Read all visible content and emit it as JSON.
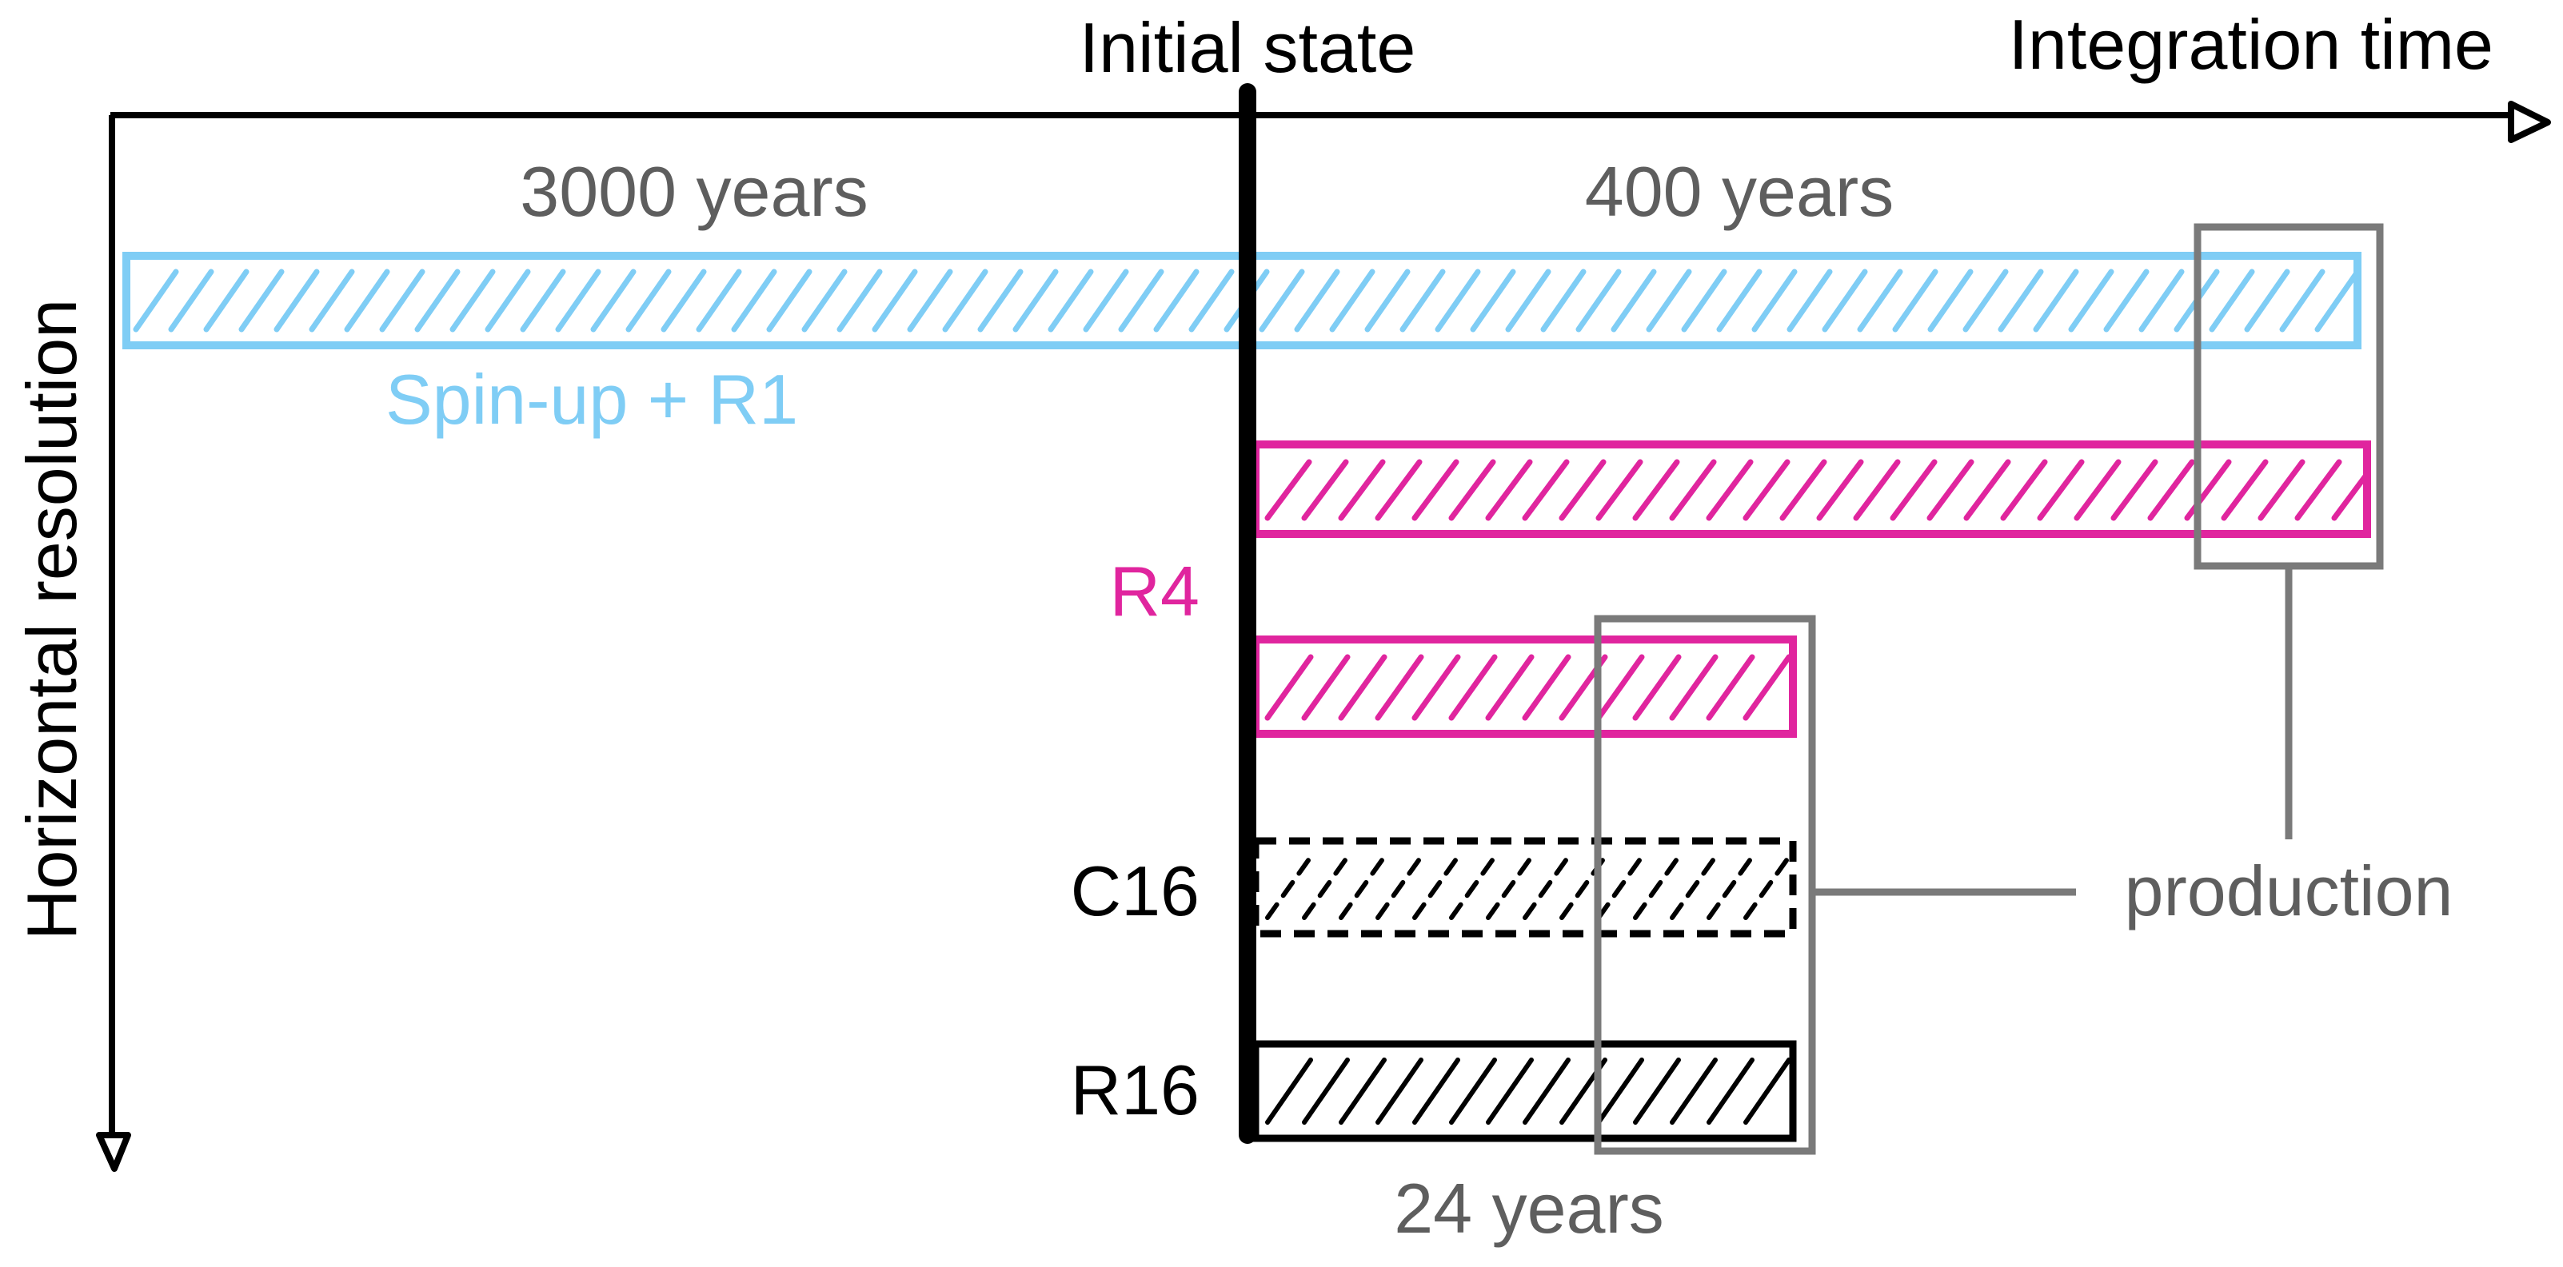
{
  "axes": {
    "x_label": "Integration time",
    "y_label": "Horizontal resolution",
    "initial_state_label": "Initial state"
  },
  "durations": {
    "spinup": "3000 years",
    "main": "400 years",
    "short": "24 years"
  },
  "runs": {
    "spinup_r1": "Spin-up + R1",
    "r4": "R4",
    "c16": "C16",
    "r16": "R16"
  },
  "annotation": {
    "production": "production"
  },
  "colors": {
    "axis": "#000000",
    "spinup": "#7fcdf5",
    "r4": "#e0259e",
    "c16": "#000000",
    "r16": "#000000",
    "production_box": "#7a7a7a",
    "gray_text": "#5e5e5e"
  }
}
